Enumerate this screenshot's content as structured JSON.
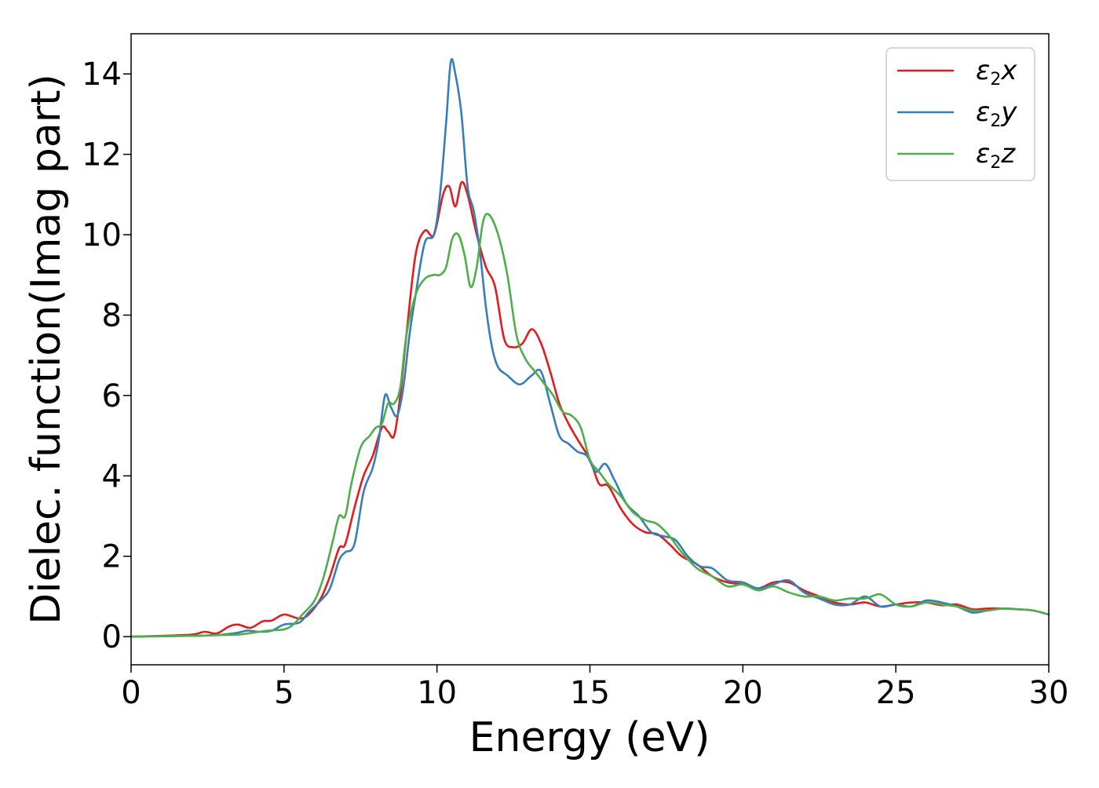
{
  "chart_data": {
    "type": "line",
    "title": "",
    "xlabel": "Energy (eV)",
    "ylabel": "Dielec. function(Imag part)",
    "xlim": [
      0,
      30
    ],
    "ylim": [
      -0.7,
      15
    ],
    "xticks": [
      0,
      5,
      10,
      15,
      20,
      25,
      30
    ],
    "yticks": [
      0,
      2,
      4,
      6,
      8,
      10,
      12,
      14
    ],
    "grid": false,
    "legend_position": "top-right",
    "series": [
      {
        "name": "ε2x",
        "legend": {
          "base": "ε",
          "sub": "2",
          "suffix": "x"
        },
        "color": "#e41a1c",
        "x": [
          0,
          1,
          2,
          2.4,
          2.8,
          3.2,
          3.5,
          3.9,
          4.3,
          4.6,
          5.0,
          5.5,
          5.8,
          6.2,
          6.5,
          6.8,
          7.0,
          7.3,
          7.6,
          7.9,
          8.2,
          8.4,
          8.6,
          8.8,
          9.0,
          9.3,
          9.6,
          9.9,
          10.2,
          10.4,
          10.6,
          10.8,
          11.0,
          11.3,
          11.6,
          11.9,
          12.2,
          12.5,
          12.8,
          13.1,
          13.4,
          13.7,
          14.0,
          14.3,
          14.6,
          15.0,
          15.3,
          15.6,
          16.0,
          16.4,
          16.8,
          17.2,
          17.6,
          18.0,
          18.5,
          19.0,
          19.5,
          20.0,
          20.5,
          21.0,
          21.5,
          22.0,
          22.5,
          23.0,
          23.5,
          24.0,
          24.5,
          25.0,
          25.5,
          26.0,
          26.5,
          27.0,
          27.5,
          28.0,
          28.5,
          29.0,
          29.5,
          30.0
        ],
        "y": [
          0,
          0.02,
          0.05,
          0.12,
          0.08,
          0.25,
          0.3,
          0.22,
          0.38,
          0.4,
          0.55,
          0.45,
          0.55,
          0.95,
          1.5,
          2.2,
          2.3,
          3.2,
          4.0,
          4.5,
          5.2,
          5.1,
          5.0,
          6.0,
          7.5,
          9.5,
          10.1,
          10.0,
          11.0,
          11.2,
          10.7,
          11.3,
          11.0,
          10.0,
          9.2,
          8.7,
          7.4,
          7.2,
          7.3,
          7.65,
          7.3,
          6.6,
          5.8,
          5.3,
          4.9,
          4.4,
          3.8,
          3.75,
          3.2,
          2.8,
          2.6,
          2.55,
          2.3,
          2.0,
          1.8,
          1.5,
          1.35,
          1.3,
          1.2,
          1.35,
          1.35,
          1.15,
          1.0,
          0.85,
          0.8,
          0.85,
          0.75,
          0.8,
          0.85,
          0.85,
          0.78,
          0.8,
          0.68,
          0.7,
          0.7,
          0.68,
          0.65,
          0.55
        ]
      },
      {
        "name": "ε2y",
        "legend": {
          "base": "ε",
          "sub": "2",
          "suffix": "y"
        },
        "color": "#377eb8",
        "x": [
          0,
          1,
          2,
          2.5,
          3.0,
          3.5,
          3.8,
          4.2,
          4.6,
          5.0,
          5.5,
          5.8,
          6.2,
          6.5,
          6.8,
          7.0,
          7.3,
          7.6,
          7.9,
          8.1,
          8.3,
          8.5,
          8.7,
          8.9,
          9.1,
          9.3,
          9.6,
          9.9,
          10.1,
          10.3,
          10.45,
          10.6,
          10.8,
          11.0,
          11.2,
          11.4,
          11.6,
          11.8,
          12.0,
          12.3,
          12.6,
          12.8,
          13.1,
          13.4,
          13.7,
          14.0,
          14.3,
          14.6,
          14.9,
          15.2,
          15.5,
          15.8,
          16.2,
          16.6,
          17.0,
          17.4,
          17.8,
          18.2,
          18.6,
          19.0,
          19.5,
          20.0,
          20.5,
          21.0,
          21.5,
          22.0,
          22.5,
          23.0,
          23.5,
          24.0,
          24.5,
          25.0,
          25.5,
          26.0,
          26.5,
          27.0,
          27.5,
          28.0,
          28.5,
          29.0,
          29.5,
          30.0
        ],
        "y": [
          0,
          0.01,
          0.02,
          0.03,
          0.05,
          0.1,
          0.15,
          0.12,
          0.15,
          0.3,
          0.35,
          0.6,
          0.9,
          1.2,
          1.9,
          2.1,
          2.3,
          3.6,
          4.2,
          4.9,
          6.0,
          5.7,
          5.5,
          6.2,
          7.5,
          8.5,
          9.8,
          10.0,
          11.0,
          12.8,
          14.3,
          14.0,
          13.0,
          11.2,
          10.6,
          9.6,
          8.2,
          7.2,
          6.7,
          6.5,
          6.3,
          6.3,
          6.5,
          6.6,
          5.8,
          5.0,
          4.8,
          4.6,
          4.5,
          4.1,
          4.3,
          3.9,
          3.3,
          3.0,
          2.6,
          2.5,
          2.4,
          2.0,
          1.75,
          1.7,
          1.4,
          1.35,
          1.2,
          1.3,
          1.4,
          1.1,
          0.95,
          0.8,
          0.8,
          1.0,
          0.75,
          0.8,
          0.75,
          0.9,
          0.85,
          0.75,
          0.6,
          0.65,
          0.7,
          0.68,
          0.65,
          0.55
        ]
      },
      {
        "name": "ε2z",
        "legend": {
          "base": "ε",
          "sub": "2",
          "suffix": "z"
        },
        "color": "#4daf4a",
        "x": [
          0,
          1,
          2,
          2.5,
          3.0,
          3.5,
          4.0,
          4.5,
          5.0,
          5.3,
          5.6,
          6.0,
          6.3,
          6.6,
          6.8,
          7.0,
          7.2,
          7.5,
          7.8,
          8.0,
          8.2,
          8.4,
          8.6,
          8.8,
          9.0,
          9.3,
          9.6,
          9.9,
          10.1,
          10.3,
          10.5,
          10.7,
          10.9,
          11.1,
          11.3,
          11.5,
          11.7,
          12.0,
          12.3,
          12.6,
          12.9,
          13.2,
          13.5,
          13.8,
          14.1,
          14.4,
          14.7,
          15.0,
          15.3,
          15.6,
          16.0,
          16.4,
          16.8,
          17.2,
          17.6,
          18.0,
          18.5,
          19.0,
          19.5,
          20.0,
          20.5,
          21.0,
          21.5,
          22.0,
          22.5,
          23.0,
          23.5,
          24.0,
          24.5,
          25.0,
          25.5,
          26.0,
          26.5,
          27.0,
          27.5,
          28.0,
          28.5,
          29.0,
          29.5,
          30.0
        ],
        "y": [
          0,
          0.01,
          0.02,
          0.03,
          0.04,
          0.05,
          0.1,
          0.15,
          0.18,
          0.3,
          0.55,
          0.9,
          1.5,
          2.4,
          3.0,
          3.0,
          3.8,
          4.7,
          5.0,
          5.2,
          5.3,
          5.8,
          5.8,
          6.2,
          7.5,
          8.5,
          8.9,
          9.0,
          9.0,
          9.2,
          9.9,
          10.0,
          9.5,
          8.7,
          9.2,
          10.3,
          10.5,
          10.0,
          9.0,
          7.5,
          6.9,
          6.6,
          6.3,
          6.0,
          5.6,
          5.5,
          5.2,
          4.4,
          4.1,
          3.8,
          3.5,
          3.1,
          2.9,
          2.8,
          2.5,
          2.1,
          1.7,
          1.5,
          1.25,
          1.3,
          1.15,
          1.25,
          1.1,
          1.0,
          1.0,
          0.9,
          0.95,
          0.95,
          1.05,
          0.8,
          0.75,
          0.85,
          0.8,
          0.75,
          0.65,
          0.65,
          0.7,
          0.68,
          0.65,
          0.55
        ]
      }
    ]
  }
}
